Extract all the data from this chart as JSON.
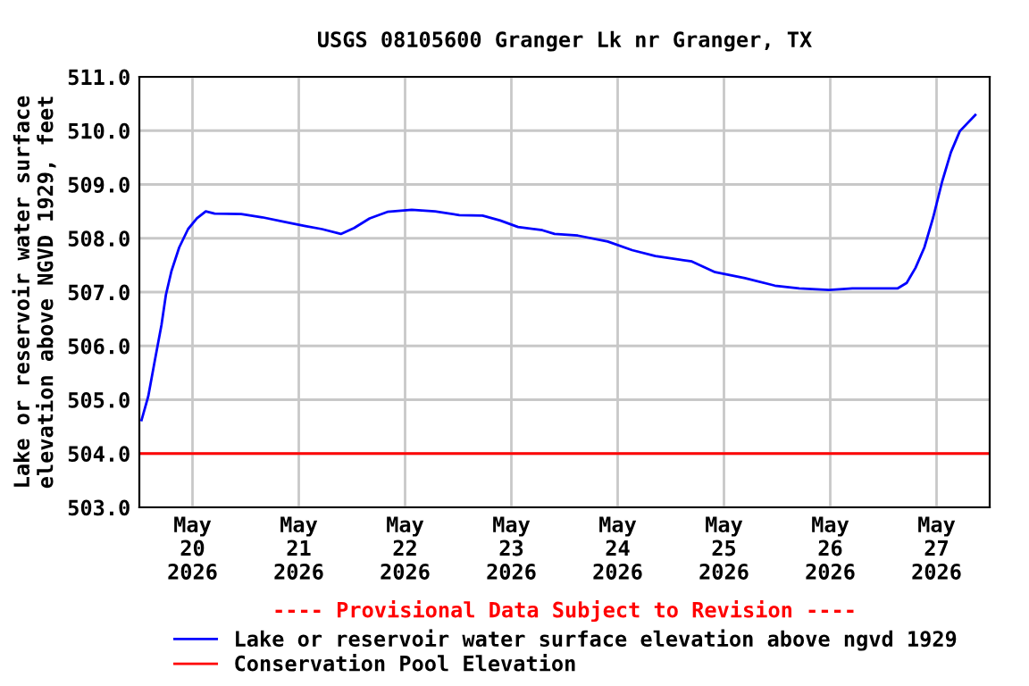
{
  "chart_data": {
    "type": "line",
    "title": "USGS 08105600 Granger Lk nr Granger, TX",
    "ylabel": "Lake or reservoir water surface\nelevation above NGVD 1929, feet",
    "annotations": [
      "---- Provisional Data Subject to Revision ----"
    ],
    "series": [
      {
        "name": "Lake or reservoir water surface elevation above ngvd 1929",
        "color": "#0000ff",
        "x": [
          "2026-05-19T12:30",
          "2026-05-19T14:00",
          "2026-05-19T15:30",
          "2026-05-19T17:00",
          "2026-05-19T18:00",
          "2026-05-19T19:15",
          "2026-05-19T21:00",
          "2026-05-19T23:00",
          "2026-05-20T01:00",
          "2026-05-20T03:00",
          "2026-05-20T05:00",
          "2026-05-20T11:00",
          "2026-05-20T15:45",
          "2026-05-20T21:00",
          "2026-05-21T01:15",
          "2026-05-21T05:15",
          "2026-05-21T09:30",
          "2026-05-21T12:30",
          "2026-05-21T16:00",
          "2026-05-21T20:00",
          "2026-05-22T01:30",
          "2026-05-22T06:45",
          "2026-05-22T12:15",
          "2026-05-22T17:30",
          "2026-05-22T21:30",
          "2026-05-23T01:30",
          "2026-05-23T07:00",
          "2026-05-23T09:45",
          "2026-05-23T15:00",
          "2026-05-23T21:45",
          "2026-05-24T03:15",
          "2026-05-24T08:30",
          "2026-05-24T16:45",
          "2026-05-24T22:00",
          "2026-05-25T04:45",
          "2026-05-25T11:30",
          "2026-05-25T17:00",
          "2026-05-25T23:45",
          "2026-05-26T05:00",
          "2026-05-26T15:15",
          "2026-05-26T17:15",
          "2026-05-26T19:15",
          "2026-05-26T21:15",
          "2026-05-26T23:15",
          "2026-05-27T01:15",
          "2026-05-27T03:15",
          "2026-05-27T05:15",
          "2026-05-27T08:45"
        ],
        "values": [
          504.62,
          505.06,
          505.73,
          506.39,
          506.95,
          507.39,
          507.83,
          508.17,
          508.37,
          508.5,
          508.46,
          508.45,
          508.39,
          508.3,
          508.23,
          508.17,
          508.08,
          508.19,
          508.37,
          508.49,
          508.53,
          508.5,
          508.43,
          508.42,
          508.33,
          508.21,
          508.15,
          508.08,
          508.05,
          507.94,
          507.78,
          507.67,
          507.57,
          507.37,
          507.26,
          507.12,
          507.07,
          507.04,
          507.07,
          507.07,
          507.17,
          507.45,
          507.83,
          508.39,
          509.05,
          509.6,
          509.99,
          510.29
        ]
      }
    ],
    "ref_lines": [
      {
        "axis": "y",
        "value": 504.0,
        "label": "Conservation Pool Elevation",
        "color": "#ff0000"
      }
    ],
    "xlim": [
      "2026-05-19T12:00",
      "2026-05-27T12:00"
    ],
    "xticks": [
      {
        "value": "2026-05-20",
        "label": "May\n20\n2026"
      },
      {
        "value": "2026-05-21",
        "label": "May\n21\n2026"
      },
      {
        "value": "2026-05-22",
        "label": "May\n22\n2026"
      },
      {
        "value": "2026-05-23",
        "label": "May\n23\n2026"
      },
      {
        "value": "2026-05-24",
        "label": "May\n24\n2026"
      },
      {
        "value": "2026-05-25",
        "label": "May\n25\n2026"
      },
      {
        "value": "2026-05-26",
        "label": "May\n26\n2026"
      },
      {
        "value": "2026-05-27",
        "label": "May\n27\n2026"
      }
    ],
    "ylim": [
      503.0,
      511.0
    ],
    "yticks": [
      {
        "value": 503,
        "label": "503.0"
      },
      {
        "value": 504,
        "label": "504.0"
      },
      {
        "value": 505,
        "label": "505.0"
      },
      {
        "value": 506,
        "label": "506.0"
      },
      {
        "value": 507,
        "label": "507.0"
      },
      {
        "value": 508,
        "label": "508.0"
      },
      {
        "value": 509,
        "label": "509.0"
      },
      {
        "value": 510,
        "label": "510.0"
      },
      {
        "value": 511,
        "label": "511.0"
      }
    ],
    "grid": true,
    "legend": "bottom",
    "line_style": "solid",
    "marker": "none"
  }
}
